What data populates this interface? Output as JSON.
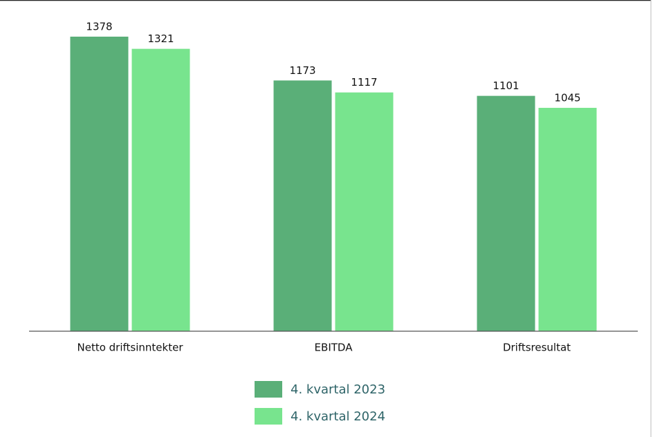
{
  "chart_data": {
    "type": "bar",
    "categories": [
      "Netto driftsinntekter",
      "EBITDA",
      "Driftsresultat"
    ],
    "series": [
      {
        "name": "4. kvartal 2023",
        "color": "#5aaf78",
        "values": [
          1378,
          1173,
          1101
        ]
      },
      {
        "name": "4. kvartal 2024",
        "color": "#78e48e",
        "values": [
          1321,
          1117,
          1045
        ]
      }
    ],
    "legend": "bottom"
  }
}
